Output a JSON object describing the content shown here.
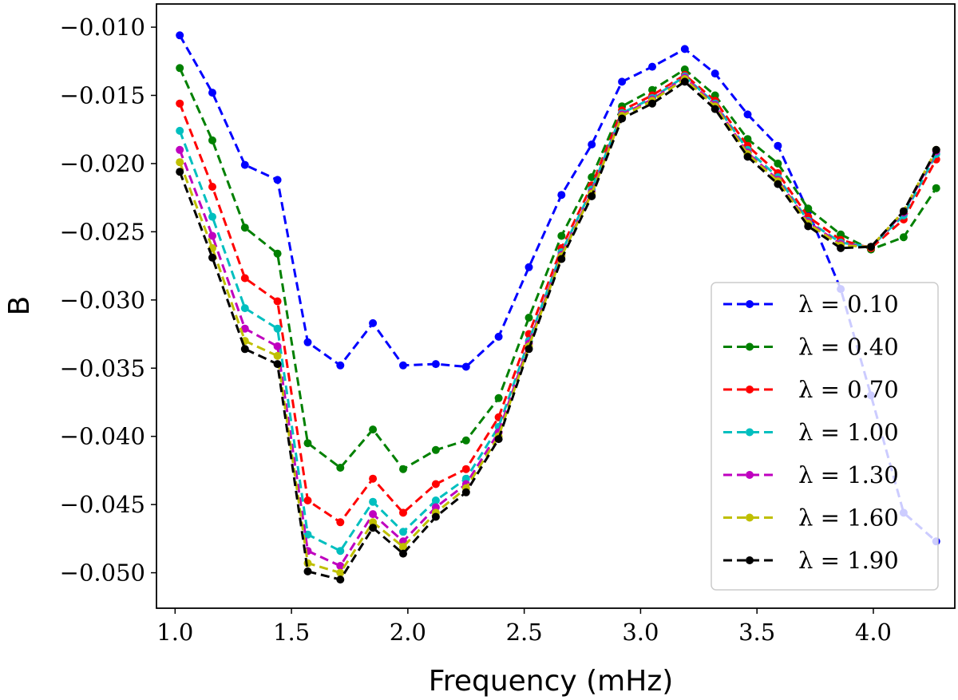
{
  "chart_data": {
    "type": "line",
    "title": "",
    "xlabel": "Frequency (mHz)",
    "ylabel": "B",
    "xlim": [
      0.92,
      4.35
    ],
    "ylim": [
      -0.0526,
      -0.0083
    ],
    "xticks": [
      1.0,
      1.5,
      2.0,
      2.5,
      3.0,
      3.5,
      4.0
    ],
    "xtick_labels": [
      "1.0",
      "1.5",
      "2.0",
      "2.5",
      "3.0",
      "3.5",
      "4.0"
    ],
    "yticks": [
      -0.01,
      -0.015,
      -0.02,
      -0.025,
      -0.03,
      -0.035,
      -0.04,
      -0.045,
      -0.05
    ],
    "ytick_labels": [
      "−0.010",
      "−0.015",
      "−0.020",
      "−0.025",
      "−0.030",
      "−0.035",
      "−0.040",
      "−0.045",
      "−0.050"
    ],
    "grid": false,
    "legend_position": "lower-right",
    "x": [
      1.02,
      1.16,
      1.3,
      1.44,
      1.57,
      1.71,
      1.85,
      1.98,
      2.12,
      2.25,
      2.39,
      2.52,
      2.66,
      2.79,
      2.92,
      3.05,
      3.19,
      3.32,
      3.46,
      3.59,
      3.72,
      3.86,
      3.99,
      4.13,
      4.27
    ],
    "series": [
      {
        "name": "λ = 0.10",
        "color": "#0000ff",
        "values": [
          -0.0106,
          -0.0148,
          -0.0201,
          -0.0212,
          -0.0331,
          -0.0348,
          -0.0317,
          -0.0348,
          -0.0347,
          -0.0349,
          -0.0327,
          -0.0276,
          -0.0223,
          -0.0186,
          -0.014,
          -0.0129,
          -0.0116,
          -0.0134,
          -0.0164,
          -0.0187,
          -0.0235,
          -0.0292,
          -0.037,
          -0.0456,
          -0.0477
        ]
      },
      {
        "name": "λ = 0.40",
        "color": "#008000",
        "values": [
          -0.013,
          -0.0183,
          -0.0247,
          -0.0266,
          -0.0405,
          -0.0423,
          -0.0395,
          -0.0424,
          -0.041,
          -0.0403,
          -0.0372,
          -0.0313,
          -0.0253,
          -0.021,
          -0.0158,
          -0.0146,
          -0.0131,
          -0.015,
          -0.0182,
          -0.02,
          -0.0233,
          -0.0252,
          -0.0263,
          -0.0254,
          -0.0218
        ]
      },
      {
        "name": "λ = 0.70",
        "color": "#ff0000",
        "values": [
          -0.0156,
          -0.0217,
          -0.0284,
          -0.0301,
          -0.0447,
          -0.0463,
          -0.0431,
          -0.0456,
          -0.0435,
          -0.0424,
          -0.0386,
          -0.0325,
          -0.0262,
          -0.0216,
          -0.0161,
          -0.015,
          -0.0135,
          -0.0154,
          -0.0187,
          -0.0207,
          -0.0239,
          -0.0256,
          -0.0262,
          -0.0241,
          -0.0197
        ]
      },
      {
        "name": "λ = 1.00",
        "color": "#00bfbf",
        "values": [
          -0.0176,
          -0.0239,
          -0.0306,
          -0.0321,
          -0.0472,
          -0.0484,
          -0.0448,
          -0.047,
          -0.0447,
          -0.0431,
          -0.0393,
          -0.033,
          -0.0265,
          -0.0219,
          -0.0163,
          -0.0152,
          -0.0136,
          -0.0156,
          -0.019,
          -0.021,
          -0.0242,
          -0.0258,
          -0.0261,
          -0.0238,
          -0.0193
        ]
      },
      {
        "name": "λ = 1.30",
        "color": "#bf00bf",
        "values": [
          -0.019,
          -0.0253,
          -0.0321,
          -0.0334,
          -0.0484,
          -0.0495,
          -0.0457,
          -0.0477,
          -0.0452,
          -0.0435,
          -0.0397,
          -0.0332,
          -0.0267,
          -0.0221,
          -0.0164,
          -0.0153,
          -0.0137,
          -0.0157,
          -0.0192,
          -0.0212,
          -0.0243,
          -0.0259,
          -0.0261,
          -0.0236,
          -0.0191
        ]
      },
      {
        "name": "λ = 1.60",
        "color": "#bfbf00",
        "values": [
          -0.0199,
          -0.0262,
          -0.033,
          -0.0341,
          -0.0493,
          -0.05,
          -0.0463,
          -0.0481,
          -0.0456,
          -0.0438,
          -0.04,
          -0.0334,
          -0.0268,
          -0.0222,
          -0.0165,
          -0.0154,
          -0.0138,
          -0.0158,
          -0.0193,
          -0.0213,
          -0.0244,
          -0.026,
          -0.0261,
          -0.0235,
          -0.019
        ]
      },
      {
        "name": "λ = 1.90",
        "color": "#000000",
        "values": [
          -0.0206,
          -0.0269,
          -0.0336,
          -0.0347,
          -0.0499,
          -0.0505,
          -0.0467,
          -0.0486,
          -0.0459,
          -0.0441,
          -0.0402,
          -0.0336,
          -0.027,
          -0.0224,
          -0.0167,
          -0.0156,
          -0.014,
          -0.016,
          -0.0195,
          -0.0215,
          -0.0246,
          -0.0262,
          -0.0261,
          -0.0235,
          -0.019
        ]
      }
    ]
  }
}
